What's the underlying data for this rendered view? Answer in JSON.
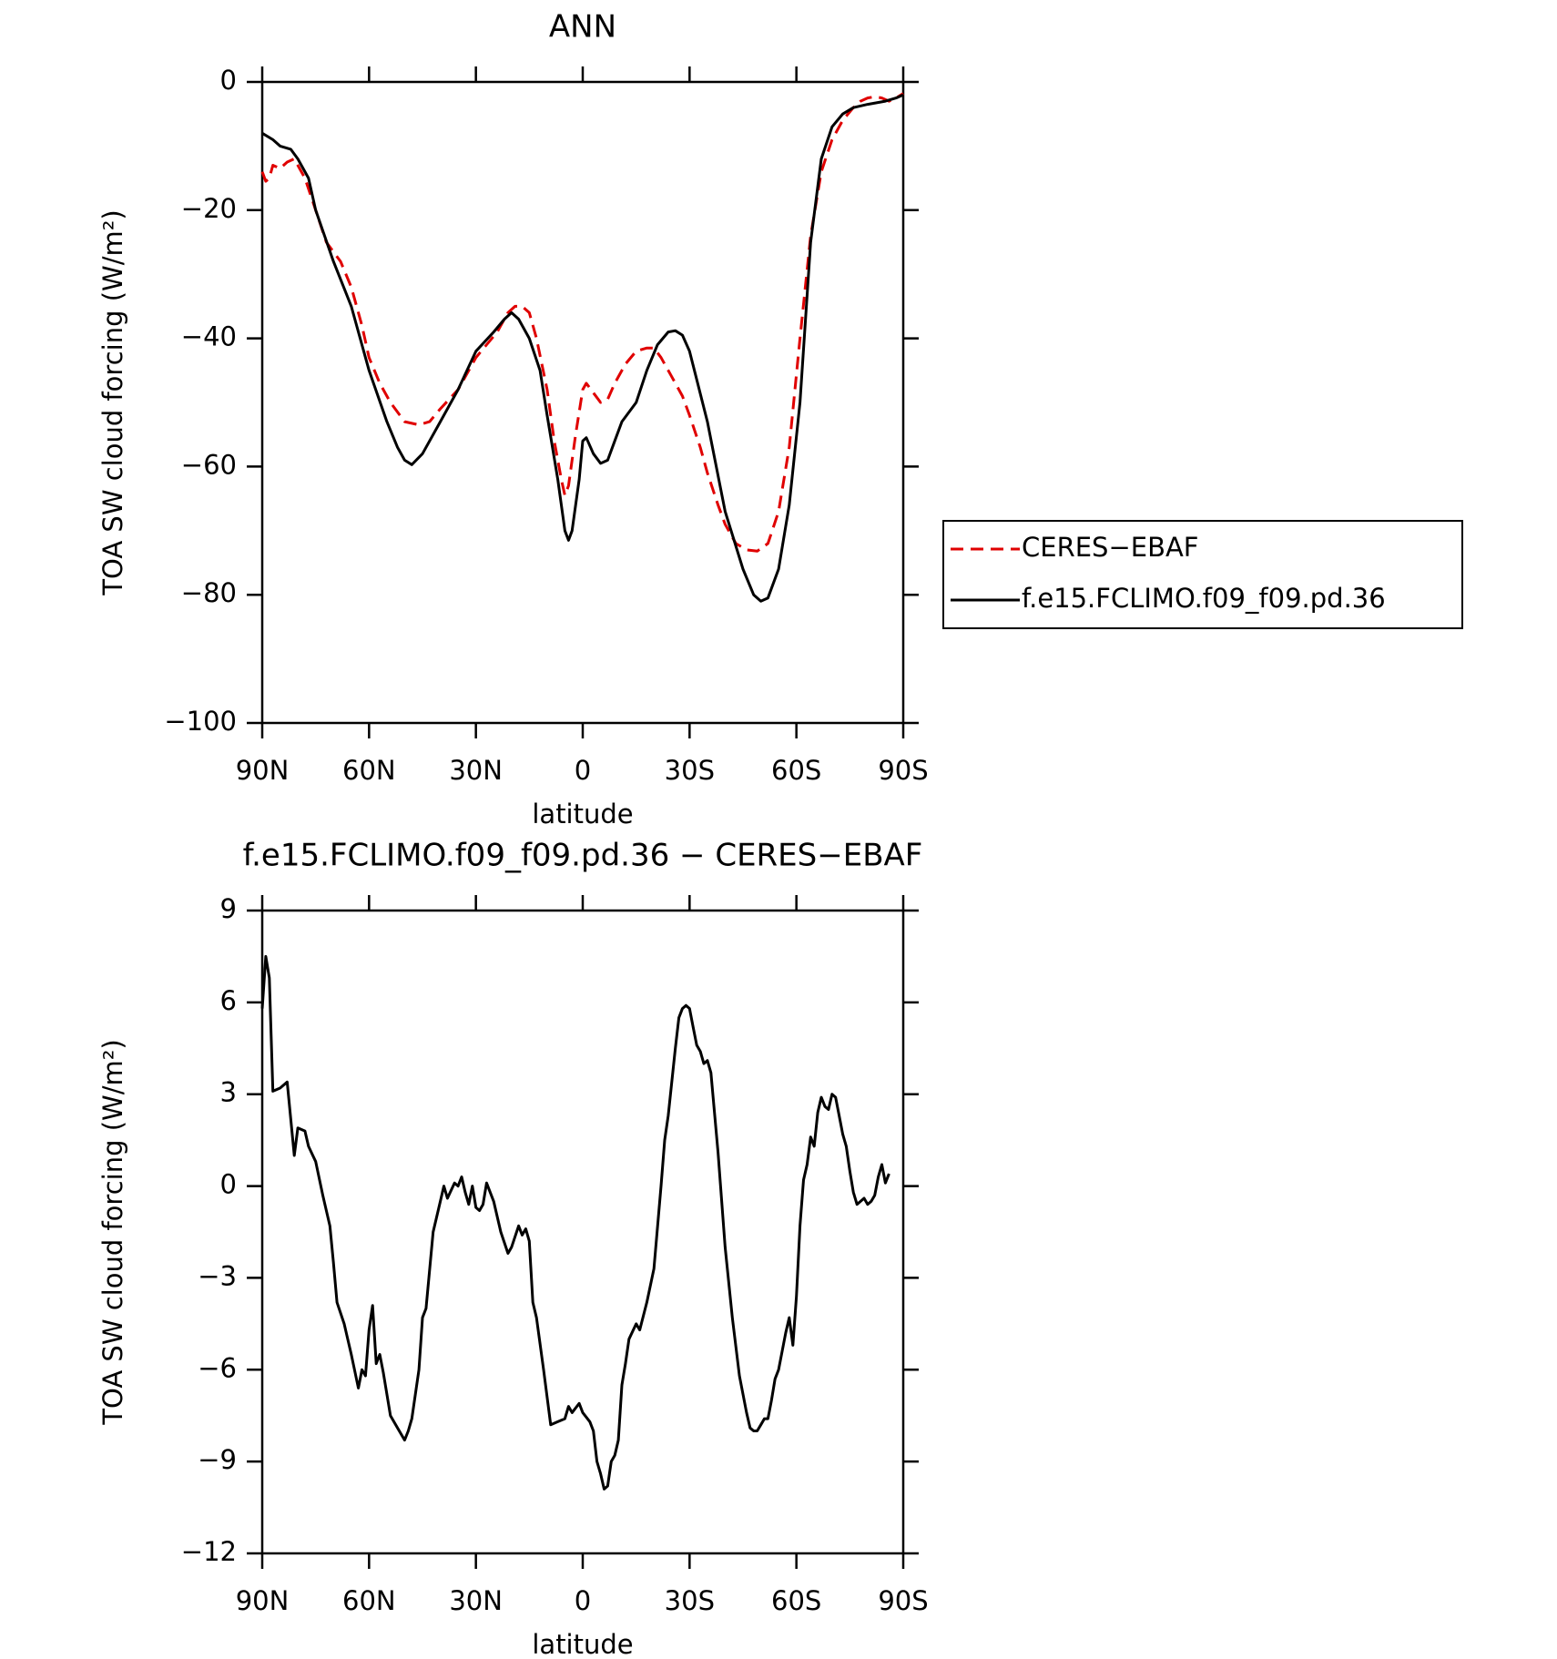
{
  "chart_data": [
    {
      "type": "line",
      "title": "ANN",
      "x_label": "latitude",
      "y_label": "TOA SW cloud forcing (W/m²)",
      "xlim": [
        90,
        -90
      ],
      "xticks": [
        {
          "value": 90,
          "label": "90N"
        },
        {
          "value": 60,
          "label": "60N"
        },
        {
          "value": 30,
          "label": "30N"
        },
        0,
        {
          "value": -30,
          "label": "30S"
        },
        {
          "value": -60,
          "label": "60S"
        },
        {
          "value": -90,
          "label": "90S"
        }
      ],
      "ylim": [
        -100,
        0
      ],
      "yticks": [
        0,
        {
          "value": -20,
          "label": "−20"
        },
        {
          "value": -40,
          "label": "−40"
        },
        {
          "value": -60,
          "label": "−60"
        },
        {
          "value": -80,
          "label": "−80"
        },
        {
          "value": -100,
          "label": "−100"
        }
      ],
      "legend": "right",
      "series": [
        {
          "name": "CERES−EBAF",
          "color": "#e00000",
          "linestyle": "dashed",
          "x": [
            90,
            89,
            88,
            87,
            85,
            83,
            81,
            78,
            75,
            72,
            68,
            65,
            62,
            60,
            57,
            54,
            50,
            46,
            43,
            40,
            35,
            30,
            27,
            24,
            21,
            19,
            17,
            15,
            13,
            10,
            8,
            6,
            5,
            4,
            2,
            0,
            -1,
            -3,
            -5,
            -7,
            -9,
            -12,
            -15,
            -18,
            -20,
            -22,
            -25,
            -28,
            -30,
            -33,
            -35,
            -38,
            -40,
            -43,
            -46,
            -49,
            -52,
            -55,
            -58,
            -61,
            -64,
            -67,
            -70,
            -73,
            -76,
            -78,
            -80,
            -82,
            -84,
            -86,
            -88,
            -90
          ],
          "values": [
            -14,
            -15.5,
            -15,
            -13,
            -13.5,
            -12.5,
            -12,
            -15,
            -20,
            -25,
            -28,
            -32,
            -38,
            -43,
            -47,
            -50,
            -53,
            -53.5,
            -53,
            -51,
            -48,
            -43,
            -41,
            -39,
            -36,
            -35,
            -35,
            -36,
            -40,
            -48,
            -56,
            -62,
            -64.5,
            -63,
            -55,
            -48,
            -47,
            -48.5,
            -50,
            -49.5,
            -47,
            -44,
            -42,
            -41.5,
            -41.5,
            -43,
            -46,
            -49,
            -52,
            -57,
            -61,
            -66,
            -69,
            -72,
            -73,
            -73.2,
            -72,
            -67,
            -57,
            -40,
            -24,
            -14,
            -9,
            -6,
            -4,
            -3,
            -2.5,
            -2.3,
            -2.5,
            -3,
            -2.5,
            -1.8
          ]
        },
        {
          "name": "f.e15.FCLIMO.f09_f09.pd.36",
          "color": "#000000",
          "linestyle": "solid",
          "x": [
            90,
            87,
            85,
            82,
            80,
            77,
            75,
            70,
            65,
            60,
            55,
            52,
            50,
            48,
            45,
            40,
            35,
            30,
            25,
            22,
            20,
            18,
            15,
            12,
            10,
            7,
            5,
            4,
            3,
            1,
            0,
            -1,
            -3,
            -5,
            -7,
            -9,
            -11,
            -15,
            -18,
            -21,
            -24,
            -26,
            -28,
            -30,
            -35,
            -40,
            -45,
            -48,
            -50,
            -52,
            -55,
            -58,
            -61,
            -64,
            -67,
            -70,
            -73,
            -76,
            -80,
            -85,
            -88,
            -90
          ],
          "values": [
            -8,
            -9,
            -10,
            -10.5,
            -12,
            -15,
            -20,
            -28,
            -35,
            -45,
            -53,
            -57,
            -59,
            -59.7,
            -58,
            -53,
            -48,
            -42,
            -39,
            -37,
            -36,
            -37,
            -40,
            -45,
            -52,
            -62,
            -70,
            -71.5,
            -70,
            -62,
            -56,
            -55.5,
            -58,
            -59.5,
            -59,
            -56,
            -53,
            -50,
            -45,
            -41,
            -39,
            -38.8,
            -39.5,
            -42,
            -53,
            -67,
            -76,
            -80,
            -81,
            -80.5,
            -76,
            -66,
            -50,
            -25,
            -12,
            -7,
            -5,
            -4,
            -3.5,
            -3,
            -2.5,
            -2
          ]
        }
      ]
    },
    {
      "type": "line",
      "title": "f.e15.FCLIMO.f09_f09.pd.36 − CERES−EBAF",
      "x_label": "latitude",
      "y_label": "TOA SW cloud forcing (W/m²)",
      "xlim": [
        90,
        -90
      ],
      "xticks": [
        {
          "value": 90,
          "label": "90N"
        },
        {
          "value": 60,
          "label": "60N"
        },
        {
          "value": 30,
          "label": "30N"
        },
        0,
        {
          "value": -30,
          "label": "30S"
        },
        {
          "value": -60,
          "label": "60S"
        },
        {
          "value": -90,
          "label": "90S"
        }
      ],
      "ylim": [
        -12,
        9
      ],
      "yticks": [
        9,
        6,
        3,
        0,
        {
          "value": -3,
          "label": "−3"
        },
        {
          "value": -6,
          "label": "−6"
        },
        {
          "value": -9,
          "label": "−9"
        },
        {
          "value": -12,
          "label": "−12"
        }
      ],
      "series": [
        {
          "color": "#000000",
          "linestyle": "solid",
          "x": [
            90,
            89,
            88,
            87,
            85,
            83,
            81,
            80,
            78,
            77,
            75,
            73,
            71,
            70,
            69,
            67,
            65,
            63,
            62,
            61,
            60,
            59,
            58,
            57,
            56,
            54,
            52,
            50,
            49,
            48,
            46,
            45,
            44,
            42,
            40,
            39,
            38,
            36,
            35,
            34,
            33,
            32,
            31,
            30,
            29,
            28,
            27,
            25,
            23,
            21,
            20,
            18,
            17,
            16,
            15,
            14,
            13,
            11,
            9,
            7,
            5,
            4,
            3,
            1,
            0,
            -2,
            -3,
            -4,
            -5,
            -6,
            -7,
            -8,
            -9,
            -10,
            -11,
            -12,
            -13,
            -15,
            -16,
            -18,
            -20,
            -22,
            -23,
            -24,
            -26,
            -27,
            -28,
            -29,
            -30,
            -31,
            -32,
            -33,
            -34,
            -35,
            -36,
            -38,
            -40,
            -42,
            -44,
            -46,
            -47,
            -48,
            -49,
            -50,
            -51,
            -52,
            -53,
            -54,
            -55,
            -57,
            -58,
            -59,
            -60,
            -61,
            -62,
            -63,
            -64,
            -65,
            -66,
            -67,
            -68,
            -69,
            -70,
            -71,
            -72,
            -73,
            -74,
            -75,
            -76,
            -77,
            -78,
            -79,
            -80,
            -81,
            -82,
            -83,
            -84,
            -85,
            -86
          ],
          "values": [
            5.8,
            7.5,
            6.8,
            3.1,
            3.2,
            3.4,
            1.0,
            1.9,
            1.8,
            1.3,
            0.8,
            -0.3,
            -1.3,
            -2.5,
            -3.8,
            -4.5,
            -5.5,
            -6.6,
            -6.0,
            -6.2,
            -4.7,
            -3.9,
            -5.8,
            -5.5,
            -6.1,
            -7.5,
            -7.9,
            -8.3,
            -8.0,
            -7.6,
            -6.0,
            -4.3,
            -4.0,
            -1.5,
            -0.5,
            0,
            -0.4,
            0.1,
            0,
            0.3,
            -0.2,
            -0.6,
            0,
            -0.7,
            -0.8,
            -0.6,
            0.1,
            -0.5,
            -1.5,
            -2.2,
            -2.0,
            -1.3,
            -1.6,
            -1.4,
            -1.8,
            -3.8,
            -4.3,
            -6.0,
            -7.8,
            -7.7,
            -7.6,
            -7.2,
            -7.4,
            -7.1,
            -7.4,
            -7.7,
            -8.0,
            -9.0,
            -9.4,
            -9.9,
            -9.8,
            -9.0,
            -8.8,
            -8.3,
            -6.5,
            -5.8,
            -5.0,
            -4.5,
            -4.7,
            -3.8,
            -2.7,
            0,
            1.5,
            2.3,
            4.5,
            5.5,
            5.8,
            5.9,
            5.8,
            5.2,
            4.6,
            4.4,
            4.0,
            4.1,
            3.7,
            1.1,
            -2.0,
            -4.3,
            -6.2,
            -7.4,
            -7.9,
            -8.0,
            -8.0,
            -7.8,
            -7.6,
            -7.6,
            -7.0,
            -6.3,
            -6.0,
            -4.8,
            -4.3,
            -5.2,
            -3.6,
            -1.3,
            0.2,
            0.7,
            1.6,
            1.3,
            2.4,
            2.9,
            2.6,
            2.5,
            3.0,
            2.9,
            2.3,
            1.7,
            1.3,
            0.5,
            -0.2,
            -0.6,
            -0.5,
            -0.4,
            -0.6,
            -0.5,
            -0.3,
            0.3,
            0.7,
            0.1,
            0.4
          ]
        }
      ]
    }
  ]
}
